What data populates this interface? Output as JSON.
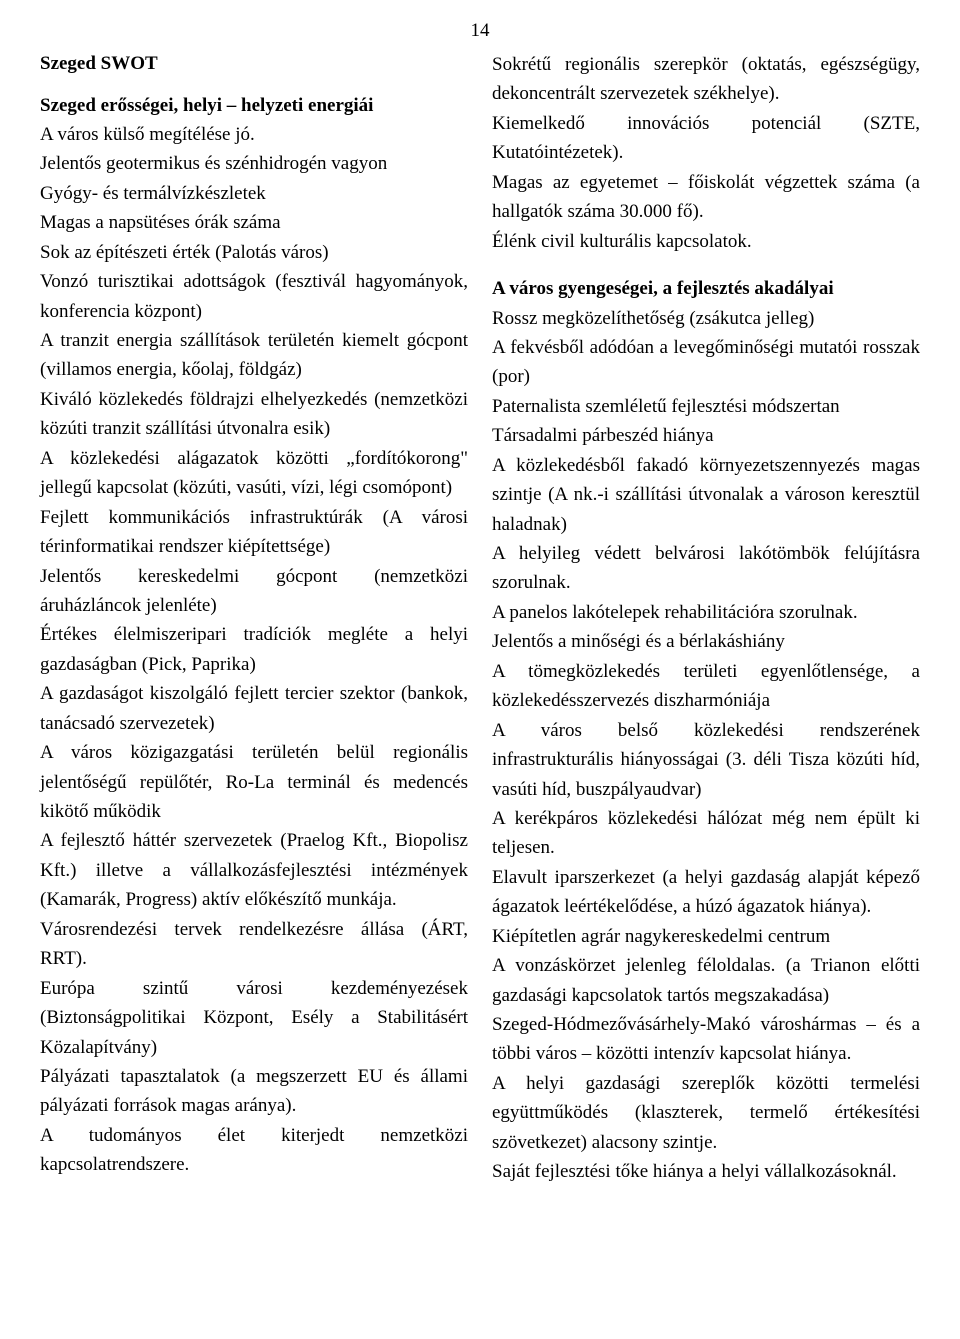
{
  "page_number": "14",
  "left": {
    "title": "Szeged SWOT",
    "heading": "Szeged erősségei, helyi – helyzeti energiái",
    "body": "A város külső megítélése jó.\nJelentős geotermikus és szénhidrogén vagyon\nGyógy- és termálvízkészletek\nMagas a napsütéses órák száma\nSok az építészeti érték (Palotás város)\nVonzó turisztikai adottságok (fesztivál hagyományok, konferencia központ)\nA tranzit energia szállítások területén kiemelt gócpont (villamos energia, kőolaj, földgáz)\nKiváló közlekedés földrajzi elhelyezkedés (nemzetközi közúti tranzit szállítási útvonalra esik)\nA közlekedési alágazatok közötti „fordítókorong\" jellegű kapcsolat (közúti, vasúti, vízi, légi csomópont)\nFejlett kommunikációs infrastruktúrák (A városi térinformatikai rendszer kiépítettsége)\nJelentős kereskedelmi gócpont (nemzetközi áruházláncok jelenléte)\nÉrtékes élelmiszeripari tradíciók megléte a helyi gazdaságban (Pick, Paprika)\nA gazdaságot kiszolgáló fejlett tercier szektor (bankok, tanácsadó szervezetek)\nA város közigazgatási területén belül regionális jelentőségű repülőtér, Ro-La terminál és medencés kikötő működik\nA fejlesztő háttér szervezetek (Praelog Kft., Biopolisz Kft.) illetve a vállalkozásfejlesztési intézmények (Kamarák, Progress) aktív előkészítő munkája.\nVárosrendezési tervek rendelkezésre állása (ÁRT, RRT).\nEurópa szintű városi kezdeményezések (Biztonságpolitikai Központ, Esély a Stabilitásért Közalapítvány)\nPályázati tapasztalatok (a megszerzett EU és állami pályázati források magas aránya).\nA tudományos élet kiterjedt nemzetközi kapcsolatrendszere."
  },
  "right": {
    "intro": "Sokrétű regionális szerepkör (oktatás, egészségügy, dekoncentrált szervezetek székhelye).\nKiemelkedő innovációs potenciál (SZTE, Kutatóintézetek).\nMagas az egyetemet – főiskolát végzettek száma (a hallgatók száma 30.000 fő).\nÉlénk civil kulturális kapcsolatok.",
    "heading": "A város gyengeségei, a fejlesztés akadályai",
    "body": "Rossz megközelíthetőség (zsákutca jelleg)\nA fekvésből adódóan a levegőminőségi mutatói rosszak (por)\nPaternalista szemléletű fejlesztési módszertan\nTársadalmi párbeszéd hiánya\nA közlekedésből fakadó környezetszennyezés magas szintje (A nk.-i szállítási útvonalak a városon keresztül haladnak)\nA helyileg védett belvárosi lakótömbök felújításra szorulnak.\nA panelos lakótelepek rehabilitációra szorulnak.\nJelentős a minőségi és a bérlakáshiány\nA tömegközlekedés területi egyenlőtlensége, a közlekedésszervezés diszharmóniája\nA város belső közlekedési rendszerének infrastrukturális hiányosságai (3. déli Tisza közúti híd, vasúti híd, buszpályaudvar)\nA kerékpáros közlekedési hálózat még nem épült ki teljesen.\nElavult iparszerkezet (a helyi gazdaság alapját képező ágazatok leértékelődése, a húzó ágazatok hiánya).\nKiépítetlen agrár nagykereskedelmi centrum\nA vonzáskörzet jelenleg féloldalas. (a Trianon előtti gazdasági kapcsolatok tartós megszakadása)\nSzeged-Hódmezővásárhely-Makó városhármas – és a többi város – közötti intenzív kapcsolat hiánya.\nA helyi gazdasági szereplők közötti termelési együttműködés (klaszterek, termelő értékesítési szövetkezet) alacsony szintje.\nSaját fejlesztési tőke hiánya a helyi vállalkozásoknál."
  }
}
